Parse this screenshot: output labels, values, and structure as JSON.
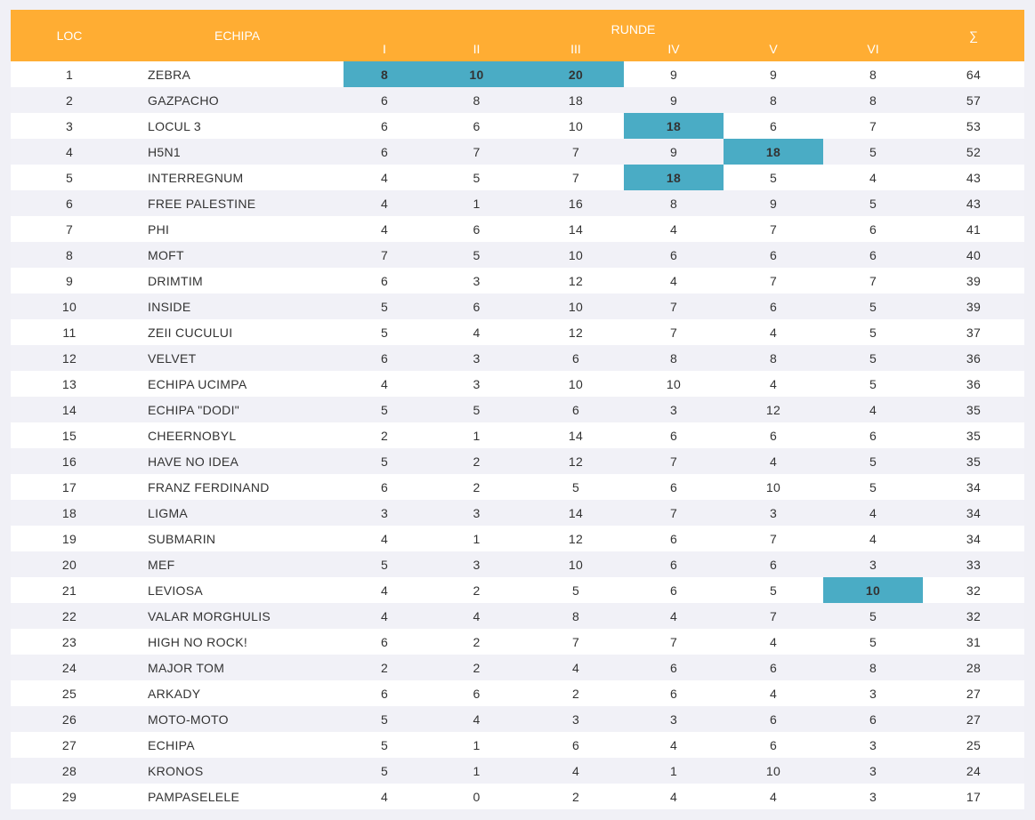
{
  "headers": {
    "loc": "LOC",
    "team": "ECHIPA",
    "runde": "RUNDE",
    "rounds": [
      "I",
      "II",
      "III",
      "IV",
      "V",
      "VI"
    ],
    "sum": "∑"
  },
  "highlight_color": "#4aacc5",
  "header_color": "#ffad33",
  "rows": [
    {
      "loc": "1",
      "team": "ZEBRA",
      "scores": [
        "8",
        "10",
        "20",
        "9",
        "9",
        "8"
      ],
      "total": "64",
      "highlight": [
        0,
        1,
        2
      ]
    },
    {
      "loc": "2",
      "team": "GAZPACHO",
      "scores": [
        "6",
        "8",
        "18",
        "9",
        "8",
        "8"
      ],
      "total": "57",
      "highlight": []
    },
    {
      "loc": "3",
      "team": "LOCUL 3",
      "scores": [
        "6",
        "6",
        "10",
        "18",
        "6",
        "7"
      ],
      "total": "53",
      "highlight": [
        3
      ]
    },
    {
      "loc": "4",
      "team": "H5N1",
      "scores": [
        "6",
        "7",
        "7",
        "9",
        "18",
        "5"
      ],
      "total": "52",
      "highlight": [
        4
      ]
    },
    {
      "loc": "5",
      "team": "INTERREGNUM",
      "scores": [
        "4",
        "5",
        "7",
        "18",
        "5",
        "4"
      ],
      "total": "43",
      "highlight": [
        3
      ]
    },
    {
      "loc": "6",
      "team": "FREE PALESTINE",
      "scores": [
        "4",
        "1",
        "16",
        "8",
        "9",
        "5"
      ],
      "total": "43",
      "highlight": []
    },
    {
      "loc": "7",
      "team": "PHI",
      "scores": [
        "4",
        "6",
        "14",
        "4",
        "7",
        "6"
      ],
      "total": "41",
      "highlight": []
    },
    {
      "loc": "8",
      "team": "MOFT",
      "scores": [
        "7",
        "5",
        "10",
        "6",
        "6",
        "6"
      ],
      "total": "40",
      "highlight": []
    },
    {
      "loc": "9",
      "team": "DRIMTIM",
      "scores": [
        "6",
        "3",
        "12",
        "4",
        "7",
        "7"
      ],
      "total": "39",
      "highlight": []
    },
    {
      "loc": "10",
      "team": "INSIDE",
      "scores": [
        "5",
        "6",
        "10",
        "7",
        "6",
        "5"
      ],
      "total": "39",
      "highlight": []
    },
    {
      "loc": "11",
      "team": "ZEII CUCULUI",
      "scores": [
        "5",
        "4",
        "12",
        "7",
        "4",
        "5"
      ],
      "total": "37",
      "highlight": []
    },
    {
      "loc": "12",
      "team": "VELVET",
      "scores": [
        "6",
        "3",
        "6",
        "8",
        "8",
        "5"
      ],
      "total": "36",
      "highlight": []
    },
    {
      "loc": "13",
      "team": "ECHIPA UCIMPA",
      "scores": [
        "4",
        "3",
        "10",
        "10",
        "4",
        "5"
      ],
      "total": "36",
      "highlight": []
    },
    {
      "loc": "14",
      "team": "ECHIPA \"DODI\"",
      "scores": [
        "5",
        "5",
        "6",
        "3",
        "12",
        "4"
      ],
      "total": "35",
      "highlight": []
    },
    {
      "loc": "15",
      "team": "CHEERNOBYL",
      "scores": [
        "2",
        "1",
        "14",
        "6",
        "6",
        "6"
      ],
      "total": "35",
      "highlight": []
    },
    {
      "loc": "16",
      "team": "HAVE NO IDEA",
      "scores": [
        "5",
        "2",
        "12",
        "7",
        "4",
        "5"
      ],
      "total": "35",
      "highlight": []
    },
    {
      "loc": "17",
      "team": "FRANZ FERDINAND",
      "scores": [
        "6",
        "2",
        "5",
        "6",
        "10",
        "5"
      ],
      "total": "34",
      "highlight": []
    },
    {
      "loc": "18",
      "team": "LIGMA",
      "scores": [
        "3",
        "3",
        "14",
        "7",
        "3",
        "4"
      ],
      "total": "34",
      "highlight": []
    },
    {
      "loc": "19",
      "team": "SUBMARIN",
      "scores": [
        "4",
        "1",
        "12",
        "6",
        "7",
        "4"
      ],
      "total": "34",
      "highlight": []
    },
    {
      "loc": "20",
      "team": "MEF",
      "scores": [
        "5",
        "3",
        "10",
        "6",
        "6",
        "3"
      ],
      "total": "33",
      "highlight": []
    },
    {
      "loc": "21",
      "team": "LEVIOSA",
      "scores": [
        "4",
        "2",
        "5",
        "6",
        "5",
        "10"
      ],
      "total": "32",
      "highlight": [
        5
      ]
    },
    {
      "loc": "22",
      "team": "VALAR MORGHULIS",
      "scores": [
        "4",
        "4",
        "8",
        "4",
        "7",
        "5"
      ],
      "total": "32",
      "highlight": []
    },
    {
      "loc": "23",
      "team": "HIGH NO ROCK!",
      "scores": [
        "6",
        "2",
        "7",
        "7",
        "4",
        "5"
      ],
      "total": "31",
      "highlight": []
    },
    {
      "loc": "24",
      "team": "MAJOR TOM",
      "scores": [
        "2",
        "2",
        "4",
        "6",
        "6",
        "8"
      ],
      "total": "28",
      "highlight": []
    },
    {
      "loc": "25",
      "team": "ARKADY",
      "scores": [
        "6",
        "6",
        "2",
        "6",
        "4",
        "3"
      ],
      "total": "27",
      "highlight": []
    },
    {
      "loc": "26",
      "team": "MOTO-MOTO",
      "scores": [
        "5",
        "4",
        "3",
        "3",
        "6",
        "6"
      ],
      "total": "27",
      "highlight": []
    },
    {
      "loc": "27",
      "team": "ECHIPA",
      "scores": [
        "5",
        "1",
        "6",
        "4",
        "6",
        "3"
      ],
      "total": "25",
      "highlight": []
    },
    {
      "loc": "28",
      "team": "KRONOS",
      "scores": [
        "5",
        "1",
        "4",
        "1",
        "10",
        "3"
      ],
      "total": "24",
      "highlight": []
    },
    {
      "loc": "29",
      "team": "PAMPASELELE",
      "scores": [
        "4",
        "0",
        "2",
        "4",
        "4",
        "3"
      ],
      "total": "17",
      "highlight": []
    }
  ]
}
